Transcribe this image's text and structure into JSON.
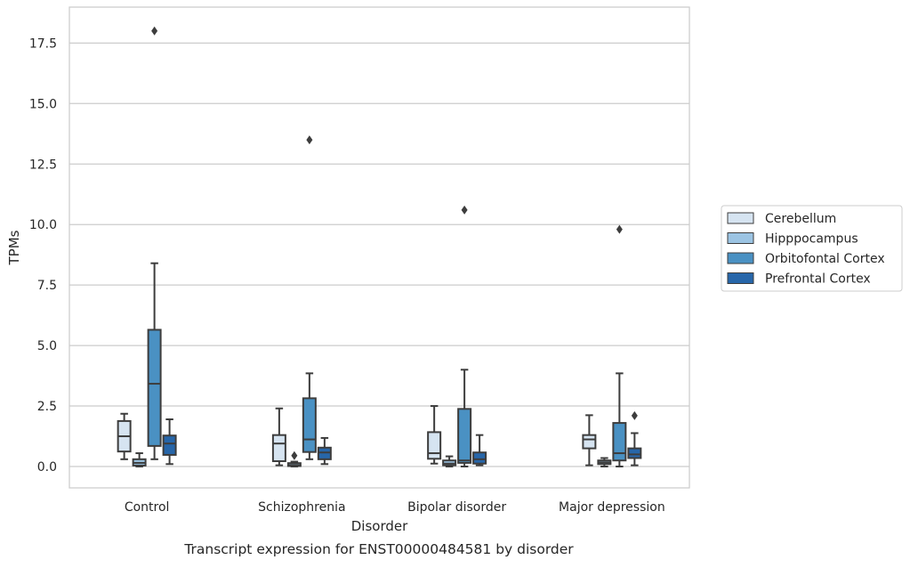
{
  "chart_data": {
    "type": "boxplot",
    "title": "Transcript expression for ENST00000484581 by disorder",
    "xlabel": "Disorder",
    "ylabel": "TPMs",
    "ylim": [
      -0.9,
      18.9
    ],
    "yticks": [
      0.0,
      2.5,
      5.0,
      7.5,
      10.0,
      12.5,
      15.0,
      17.5
    ],
    "ytick_labels": [
      "0.0",
      "2.5",
      "5.0",
      "7.5",
      "10.0",
      "12.5",
      "15.0",
      "17.5"
    ],
    "grid": "horizontal",
    "legend_position": "right",
    "categories": [
      "Control",
      "Schizophrenia",
      "Bipolar disorder",
      "Major depression"
    ],
    "series": [
      {
        "name": "Cerebellum",
        "color": "#d6e4f1",
        "boxes": [
          {
            "whislo": 0.3,
            "q1": 0.62,
            "med": 1.25,
            "q3": 1.88,
            "whishi": 2.18,
            "fliers": []
          },
          {
            "whislo": 0.05,
            "q1": 0.22,
            "med": 0.95,
            "q3": 1.3,
            "whishi": 2.4,
            "fliers": []
          },
          {
            "whislo": 0.12,
            "q1": 0.32,
            "med": 0.55,
            "q3": 1.42,
            "whishi": 2.5,
            "fliers": []
          },
          {
            "whislo": 0.05,
            "q1": 0.75,
            "med": 1.12,
            "q3": 1.3,
            "whishi": 2.12,
            "fliers": []
          }
        ]
      },
      {
        "name": "Hipppocampus",
        "color": "#9cc4e3",
        "boxes": [
          {
            "whislo": 0.0,
            "q1": 0.04,
            "med": 0.15,
            "q3": 0.3,
            "whishi": 0.55,
            "fliers": []
          },
          {
            "whislo": 0.0,
            "q1": 0.02,
            "med": 0.06,
            "q3": 0.14,
            "whishi": 0.2,
            "fliers": [
              0.45
            ]
          },
          {
            "whislo": 0.0,
            "q1": 0.05,
            "med": 0.12,
            "q3": 0.25,
            "whishi": 0.42,
            "fliers": []
          },
          {
            "whislo": 0.0,
            "q1": 0.1,
            "med": 0.17,
            "q3": 0.25,
            "whishi": 0.35,
            "fliers": []
          }
        ]
      },
      {
        "name": "Orbitofontal Cortex",
        "color": "#4a91c3",
        "boxes": [
          {
            "whislo": 0.3,
            "q1": 0.85,
            "med": 3.42,
            "q3": 5.65,
            "whishi": 8.4,
            "fliers": [
              18.0
            ]
          },
          {
            "whislo": 0.3,
            "q1": 0.6,
            "med": 1.12,
            "q3": 2.82,
            "whishi": 3.85,
            "fliers": [
              13.5
            ]
          },
          {
            "whislo": 0.0,
            "q1": 0.15,
            "med": 0.25,
            "q3": 2.38,
            "whishi": 4.0,
            "fliers": [
              10.6
            ]
          },
          {
            "whislo": 0.0,
            "q1": 0.25,
            "med": 0.55,
            "q3": 1.8,
            "whishi": 3.85,
            "fliers": [
              9.8
            ]
          }
        ]
      },
      {
        "name": "Prefrontal Cortex",
        "color": "#2766a9",
        "boxes": [
          {
            "whislo": 0.1,
            "q1": 0.48,
            "med": 0.95,
            "q3": 1.28,
            "whishi": 1.95,
            "fliers": []
          },
          {
            "whislo": 0.1,
            "q1": 0.3,
            "med": 0.58,
            "q3": 0.78,
            "whishi": 1.18,
            "fliers": []
          },
          {
            "whislo": 0.05,
            "q1": 0.12,
            "med": 0.3,
            "q3": 0.58,
            "whishi": 1.3,
            "fliers": []
          },
          {
            "whislo": 0.05,
            "q1": 0.35,
            "med": 0.5,
            "q3": 0.75,
            "whishi": 1.38,
            "fliers": [
              2.1
            ]
          }
        ]
      }
    ]
  }
}
